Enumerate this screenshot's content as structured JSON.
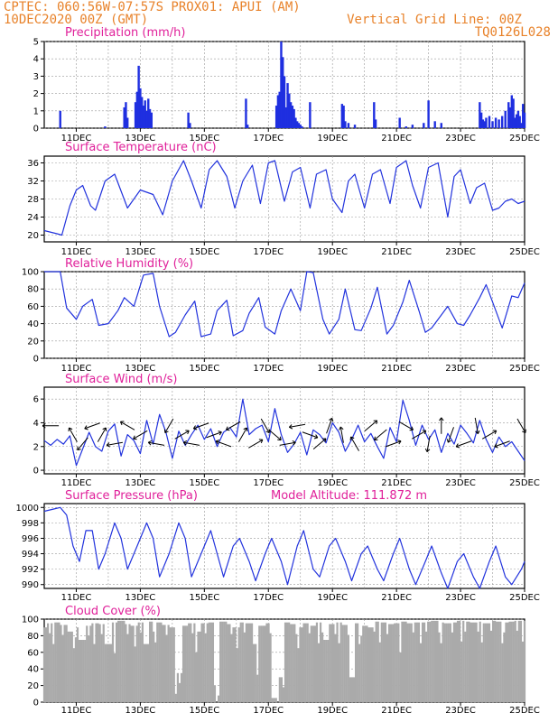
{
  "header": {
    "line1": "CPTEC:    060:56W-07:57S   PROX01: APUI (AM)",
    "line2": "10DEC2020 00Z (GMT)",
    "grid_note": "Vertical Grid Line: 00Z",
    "run_id": "TQ0126L028"
  },
  "model_altitude": "Model Altitude: 111.872 m",
  "x_ticks": [
    "11DEC",
    "13DEC",
    "15DEC",
    "17DEC",
    "19DEC",
    "21DEC",
    "23DEC",
    "25DEC"
  ],
  "colors": {
    "line": "#2233dd",
    "bar": "#1f2fe0",
    "cloud": "#aaaaaa",
    "header": "#e8822a",
    "title": "#e0209a"
  },
  "chart_data": [
    {
      "type": "bar",
      "title": "Precipitation (mm/h)",
      "ylim": [
        0,
        5
      ],
      "yticks": [
        "0",
        "1",
        "2",
        "3",
        "4",
        "5"
      ],
      "x_range_days": [
        10.0,
        25.0
      ],
      "grid": true,
      "x": [
        10.5,
        11.9,
        12.5,
        12.55,
        12.6,
        12.85,
        12.9,
        12.95,
        13.0,
        13.05,
        13.1,
        13.15,
        13.2,
        13.25,
        13.3,
        13.35,
        14.5,
        14.55,
        16.3,
        16.35,
        17.25,
        17.3,
        17.35,
        17.4,
        17.45,
        17.5,
        17.55,
        17.6,
        17.65,
        17.7,
        17.75,
        17.8,
        17.85,
        17.9,
        17.95,
        18.0,
        18.05,
        18.3,
        19.3,
        19.35,
        19.4,
        19.5,
        19.7,
        20.3,
        20.35,
        21.1,
        21.3,
        21.5,
        21.85,
        22.0,
        22.2,
        22.4,
        23.6,
        23.65,
        23.7,
        23.75,
        23.8,
        23.9,
        24.0,
        24.1,
        24.2,
        24.3,
        24.4,
        24.5,
        24.55,
        24.6,
        24.65,
        24.7,
        24.75,
        24.8,
        24.85,
        24.9,
        24.95,
        25.0
      ],
      "values": [
        1.0,
        0.1,
        1.2,
        1.5,
        0.6,
        1.5,
        2.1,
        3.6,
        2.3,
        1.8,
        1.3,
        1.6,
        1.0,
        1.7,
        1.1,
        0.9,
        0.9,
        0.3,
        1.7,
        0.2,
        1.3,
        1.9,
        2.1,
        5.0,
        4.1,
        3.0,
        1.2,
        2.6,
        2.0,
        1.5,
        1.3,
        1.1,
        0.6,
        0.4,
        0.3,
        0.2,
        0.1,
        1.5,
        1.4,
        1.3,
        0.4,
        0.3,
        0.2,
        1.5,
        0.5,
        0.6,
        0.1,
        0.2,
        0.3,
        1.6,
        0.4,
        0.3,
        1.5,
        0.9,
        0.5,
        0.4,
        0.6,
        0.7,
        0.4,
        0.6,
        0.5,
        0.7,
        1.0,
        1.5,
        1.2,
        1.9,
        1.7,
        0.6,
        0.8,
        1.0,
        0.7,
        0.3,
        1.4,
        0.9
      ]
    },
    {
      "type": "line",
      "title": "Surface Temperature (nC)",
      "ylim": [
        18.5,
        37.5
      ],
      "yticks": [
        "20",
        "24",
        "28",
        "32",
        "36"
      ],
      "x_range_days": [
        10.0,
        25.0
      ],
      "grid": true,
      "x": [
        10.0,
        10.4,
        10.55,
        10.8,
        11.0,
        11.2,
        11.45,
        11.6,
        11.9,
        12.2,
        12.6,
        13.0,
        13.4,
        13.7,
        14.0,
        14.35,
        14.6,
        14.9,
        15.15,
        15.4,
        15.7,
        15.95,
        16.2,
        16.5,
        16.75,
        17.0,
        17.2,
        17.5,
        17.75,
        18.0,
        18.3,
        18.5,
        18.8,
        19.0,
        19.3,
        19.5,
        19.7,
        20.0,
        20.25,
        20.5,
        20.8,
        21.0,
        21.3,
        21.5,
        21.75,
        22.0,
        22.3,
        22.6,
        22.8,
        23.0,
        23.3,
        23.5,
        23.75,
        24.0,
        24.2,
        24.4,
        24.6,
        24.8,
        25.0
      ],
      "values": [
        21.0,
        20.3,
        20.0,
        26.5,
        30.0,
        31.0,
        26.5,
        25.5,
        32.0,
        33.5,
        26.0,
        30.0,
        29.0,
        24.5,
        32.0,
        36.5,
        32.0,
        26.0,
        34.5,
        36.5,
        33.0,
        26.0,
        32.0,
        35.5,
        27.0,
        36.0,
        36.5,
        27.5,
        34.0,
        35.0,
        26.0,
        33.5,
        34.5,
        28.0,
        25.0,
        32.0,
        33.5,
        26.0,
        33.5,
        34.5,
        27.0,
        35.0,
        36.5,
        31.0,
        26.0,
        35.0,
        36.0,
        24.0,
        33.0,
        34.5,
        27.0,
        30.5,
        31.5,
        25.5,
        26.0,
        27.5,
        28.0,
        27.0,
        27.5
      ]
    },
    {
      "type": "line",
      "title": "Relative Humidity (%)",
      "ylim": [
        0,
        100
      ],
      "yticks": [
        "0",
        "20",
        "40",
        "60",
        "80",
        "100"
      ],
      "x_range_days": [
        10.0,
        25.0
      ],
      "grid": true,
      "x": [
        10.0,
        10.5,
        10.7,
        11.0,
        11.2,
        11.5,
        11.7,
        12.0,
        12.3,
        12.5,
        12.8,
        13.1,
        13.4,
        13.6,
        13.9,
        14.1,
        14.4,
        14.7,
        14.9,
        15.2,
        15.4,
        15.7,
        15.9,
        16.2,
        16.4,
        16.7,
        16.9,
        17.2,
        17.4,
        17.7,
        18.0,
        18.2,
        18.4,
        18.7,
        18.9,
        19.2,
        19.4,
        19.7,
        19.9,
        20.2,
        20.4,
        20.7,
        20.9,
        21.2,
        21.4,
        21.7,
        21.9,
        22.1,
        22.4,
        22.6,
        22.9,
        23.1,
        23.3,
        23.6,
        23.8,
        24.1,
        24.3,
        24.6,
        24.8,
        25.0
      ],
      "values": [
        100,
        100,
        58,
        45,
        60,
        68,
        38,
        40,
        55,
        70,
        60,
        96,
        98,
        60,
        25,
        30,
        50,
        66,
        25,
        28,
        55,
        67,
        26,
        32,
        52,
        70,
        36,
        28,
        55,
        80,
        55,
        100,
        99,
        45,
        28,
        45,
        80,
        33,
        32,
        58,
        82,
        28,
        38,
        65,
        90,
        55,
        30,
        35,
        50,
        60,
        40,
        38,
        50,
        70,
        85,
        55,
        35,
        72,
        70,
        87
      ]
    },
    {
      "type": "line",
      "title": "Surface Wind (m/s)",
      "ylim": [
        -0.3,
        7.0
      ],
      "yticks": [
        "0",
        "2",
        "4",
        "6"
      ],
      "x_range_days": [
        10.0,
        25.0
      ],
      "grid": true,
      "x": [
        10.0,
        10.2,
        10.4,
        10.6,
        10.8,
        11.0,
        11.2,
        11.4,
        11.6,
        11.8,
        12.0,
        12.2,
        12.4,
        12.6,
        12.8,
        13.0,
        13.2,
        13.4,
        13.6,
        13.8,
        14.0,
        14.2,
        14.4,
        14.6,
        14.8,
        15.0,
        15.2,
        15.4,
        15.6,
        15.8,
        16.0,
        16.2,
        16.4,
        16.6,
        16.8,
        17.0,
        17.2,
        17.4,
        17.6,
        17.8,
        18.0,
        18.2,
        18.4,
        18.6,
        18.8,
        19.0,
        19.2,
        19.4,
        19.6,
        19.8,
        20.0,
        20.2,
        20.4,
        20.6,
        20.8,
        21.0,
        21.2,
        21.4,
        21.6,
        21.8,
        22.0,
        22.2,
        22.4,
        22.6,
        22.8,
        23.0,
        23.2,
        23.4,
        23.6,
        23.8,
        24.0,
        24.2,
        24.4,
        24.6,
        24.8,
        25.0
      ],
      "values": [
        2.5,
        2.1,
        2.6,
        2.2,
        2.9,
        0.4,
        1.8,
        3.2,
        2.0,
        1.6,
        3.3,
        3.9,
        1.2,
        3.0,
        2.5,
        1.4,
        4.2,
        2.2,
        4.7,
        3.2,
        1.0,
        3.3,
        2.1,
        3.0,
        3.8,
        2.6,
        3.5,
        2.0,
        3.2,
        3.6,
        2.8,
        6.0,
        3.0,
        3.5,
        3.8,
        2.4,
        5.2,
        3.0,
        1.5,
        2.2,
        3.2,
        1.3,
        3.4,
        3.0,
        2.3,
        4.0,
        3.2,
        1.6,
        2.6,
        3.8,
        2.4,
        3.1,
        2.0,
        1.0,
        3.6,
        2.4,
        5.9,
        4.2,
        2.1,
        3.8,
        2.6,
        3.4,
        1.5,
        3.1,
        2.2,
        3.8,
        3.1,
        2.3,
        4.2,
        2.6,
        1.5,
        2.8,
        2.0,
        2.4,
        1.6,
        0.8
      ]
    },
    {
      "type": "line",
      "title": "Surface Pressure (hPa)",
      "ylim": [
        989.5,
        1000.5
      ],
      "yticks": [
        "990",
        "992",
        "994",
        "996",
        "998",
        "1000"
      ],
      "x_range_days": [
        10.0,
        25.0
      ],
      "grid": true,
      "x": [
        10.0,
        10.3,
        10.5,
        10.7,
        10.9,
        11.1,
        11.3,
        11.5,
        11.7,
        11.9,
        12.2,
        12.4,
        12.6,
        12.9,
        13.2,
        13.4,
        13.6,
        13.9,
        14.2,
        14.4,
        14.6,
        14.9,
        15.2,
        15.4,
        15.6,
        15.9,
        16.1,
        16.4,
        16.6,
        16.9,
        17.1,
        17.4,
        17.6,
        17.9,
        18.1,
        18.4,
        18.6,
        18.9,
        19.1,
        19.4,
        19.6,
        19.9,
        20.1,
        20.4,
        20.6,
        20.9,
        21.1,
        21.4,
        21.6,
        21.9,
        22.1,
        22.4,
        22.6,
        22.9,
        23.1,
        23.4,
        23.6,
        23.9,
        24.1,
        24.4,
        24.6,
        24.9,
        25.0
      ],
      "values": [
        999.5,
        999.8,
        1000.0,
        999.0,
        995.0,
        993.0,
        997.0,
        997.0,
        992.0,
        994.0,
        998.0,
        996.0,
        992.0,
        995.0,
        998.0,
        996.0,
        991.0,
        994.0,
        998.0,
        996.0,
        991.0,
        994.0,
        997.0,
        994.0,
        991.0,
        995.0,
        996.0,
        993.0,
        990.5,
        994.0,
        996.0,
        993.0,
        990.0,
        995.0,
        997.0,
        992.0,
        991.0,
        995.0,
        996.0,
        993.0,
        990.5,
        994.0,
        995.0,
        992.0,
        990.5,
        994.0,
        996.0,
        992.0,
        990.0,
        993.0,
        995.0,
        991.5,
        989.5,
        993.0,
        994.0,
        991.0,
        989.5,
        993.0,
        995.0,
        991.0,
        990.0,
        992.0,
        993.0
      ]
    },
    {
      "type": "bar",
      "title": "Cloud Cover (%)",
      "ylim": [
        0,
        100
      ],
      "yticks": [
        "0",
        "20",
        "40",
        "60",
        "80",
        "100"
      ],
      "x_range_days": [
        10.0,
        25.0
      ],
      "grid": true,
      "x": [
        10.0,
        10.2,
        10.4,
        10.6,
        10.8,
        11.0,
        11.2,
        11.4,
        11.6,
        11.8,
        12.0,
        12.2,
        12.4,
        12.6,
        12.8,
        13.0,
        13.2,
        13.4,
        13.6,
        13.8,
        14.0,
        14.2,
        14.4,
        14.6,
        14.8,
        15.0,
        15.2,
        15.4,
        15.6,
        15.8,
        16.0,
        16.2,
        16.4,
        16.6,
        16.8,
        17.0,
        17.2,
        17.4,
        17.6,
        17.8,
        18.0,
        18.2,
        18.4,
        18.6,
        18.8,
        19.0,
        19.2,
        19.4,
        19.6,
        19.8,
        20.0,
        20.2,
        20.4,
        20.6,
        20.8,
        21.0,
        21.2,
        21.4,
        21.6,
        21.8,
        22.0,
        22.2,
        22.4,
        22.6,
        22.8,
        23.0,
        23.2,
        23.4,
        23.6,
        23.8,
        24.0,
        24.2,
        24.4,
        24.6,
        24.8,
        25.0
      ],
      "values": [
        90,
        95,
        96,
        93,
        85,
        90,
        75,
        92,
        95,
        94,
        70,
        96,
        98,
        94,
        92,
        96,
        70,
        97,
        96,
        93,
        90,
        35,
        92,
        95,
        85,
        95,
        96,
        20,
        97,
        94,
        90,
        96,
        95,
        70,
        92,
        95,
        5,
        30,
        96,
        94,
        90,
        95,
        92,
        96,
        75,
        94,
        96,
        93,
        30,
        95,
        92,
        90,
        97,
        96,
        94,
        95,
        97,
        95,
        96,
        96,
        97,
        98,
        96,
        95,
        96,
        98,
        97,
        96,
        97,
        95,
        98,
        97,
        96,
        97,
        98,
        98
      ],
      "xlabel": "",
      "ylabel": ""
    }
  ],
  "wind_arrows": {
    "x": [
      10.2,
      10.9,
      11.2,
      11.5,
      11.8,
      12.2,
      12.6,
      13.0,
      13.5,
      13.9,
      14.3,
      14.6,
      14.9,
      15.3,
      15.6,
      15.9,
      16.2,
      16.6,
      16.9,
      17.2,
      17.6,
      17.9,
      18.3,
      18.6,
      18.9,
      19.3,
      19.7,
      20.2,
      20.5,
      20.9,
      21.3,
      21.7,
      22.0,
      22.4,
      22.7,
      23.1,
      23.5,
      23.9,
      24.3,
      24.9
    ],
    "dir_deg": [
      180,
      120,
      230,
      200,
      60,
      190,
      150,
      210,
      170,
      240,
      30,
      170,
      200,
      20,
      160,
      210,
      60,
      30,
      300,
      320,
      10,
      190,
      340,
      40,
      70,
      100,
      120,
      40,
      220,
      20,
      330,
      30,
      260,
      90,
      250,
      200,
      280,
      30,
      200,
      300
    ]
  }
}
